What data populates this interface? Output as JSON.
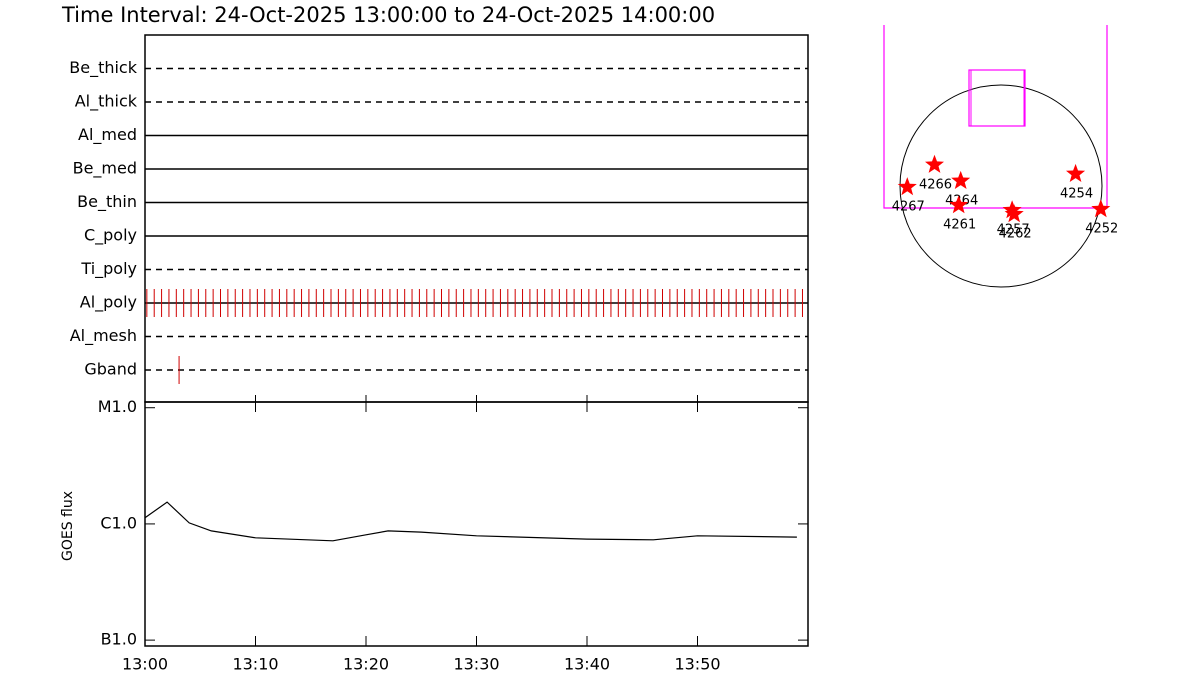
{
  "chart_data": [
    {
      "type": "timeline",
      "title": "Time Interval: 24-Oct-2025 13:00:00 to 24-Oct-2025 14:00:00",
      "xlim": [
        "13:00",
        "14:00"
      ],
      "xticks": [
        "13:00",
        "13:10",
        "13:20",
        "13:30",
        "13:40",
        "13:50"
      ],
      "event_color": "#d00000",
      "rows": [
        {
          "name": "Be_thick",
          "style": "dashed",
          "events": []
        },
        {
          "name": "Al_thick",
          "style": "dashed",
          "events": []
        },
        {
          "name": "Al_med",
          "style": "solid",
          "events": []
        },
        {
          "name": "Be_med",
          "style": "solid",
          "events": []
        },
        {
          "name": "Be_thin",
          "style": "solid",
          "events": []
        },
        {
          "name": "C_poly",
          "style": "solid",
          "events": []
        },
        {
          "name": "Ti_poly",
          "style": "dashed",
          "events": []
        },
        {
          "name": "Al_poly",
          "style": "solid",
          "events": [
            "13:00:10",
            "13:00:50",
            "13:01:30",
            "13:02:10",
            "13:02:50",
            "13:03:30",
            "13:04:10",
            "13:04:50",
            "13:05:30",
            "13:06:10",
            "13:06:50",
            "13:07:30",
            "13:08:10",
            "13:08:50",
            "13:09:30",
            "13:10:10",
            "13:10:50",
            "13:11:30",
            "13:12:10",
            "13:12:50",
            "13:13:30",
            "13:14:10",
            "13:14:50",
            "13:15:30",
            "13:16:10",
            "13:16:50",
            "13:17:30",
            "13:18:10",
            "13:18:50",
            "13:19:30",
            "13:20:10",
            "13:20:50",
            "13:21:30",
            "13:22:10",
            "13:22:50",
            "13:23:30",
            "13:24:10",
            "13:24:50",
            "13:25:30",
            "13:26:10",
            "13:26:50",
            "13:27:30",
            "13:28:10",
            "13:28:50",
            "13:29:30",
            "13:30:10",
            "13:30:50",
            "13:31:30",
            "13:32:10",
            "13:32:50",
            "13:33:30",
            "13:34:10",
            "13:34:50",
            "13:35:30",
            "13:36:10",
            "13:36:50",
            "13:37:30",
            "13:38:10",
            "13:38:50",
            "13:39:30",
            "13:40:10",
            "13:40:50",
            "13:41:30",
            "13:42:10",
            "13:42:50",
            "13:43:30",
            "13:44:10",
            "13:44:50",
            "13:45:30",
            "13:46:10",
            "13:46:50",
            "13:47:30",
            "13:48:10",
            "13:48:50",
            "13:49:30",
            "13:50:10",
            "13:50:50",
            "13:51:30",
            "13:52:10",
            "13:52:50",
            "13:53:30",
            "13:54:10",
            "13:54:50",
            "13:55:30",
            "13:56:10",
            "13:56:50",
            "13:57:30",
            "13:58:10",
            "13:58:50",
            "13:59:30"
          ]
        },
        {
          "name": "Al_mesh",
          "style": "dashed",
          "events": []
        },
        {
          "name": "Gband",
          "style": "dashed",
          "events": [
            "13:03:05"
          ]
        }
      ]
    },
    {
      "type": "line",
      "y_label": "GOES flux",
      "log_scale": true,
      "color": "#000000",
      "x": [
        "13:00",
        "13:02",
        "13:04",
        "13:06",
        "13:10",
        "13:17",
        "13:20",
        "13:22",
        "13:25",
        "13:30",
        "13:40",
        "13:46",
        "13:50",
        "13:59"
      ],
      "values": [
        1.13e-06,
        1.54e-06,
        1.02e-06,
        8.7e-07,
        7.6e-07,
        7.16e-07,
        8.06e-07,
        8.7e-07,
        8.5e-07,
        7.9e-07,
        7.4e-07,
        7.3e-07,
        7.9e-07,
        7.7e-07
      ],
      "xlim": [
        "13:00",
        "14:00"
      ],
      "xticks": [
        "13:00",
        "13:10",
        "13:20",
        "13:30",
        "13:40",
        "13:50"
      ],
      "ylim": [
        8.9e-08,
        1.12e-05
      ],
      "yticks": [
        {
          "value": 1e-07,
          "label": "B1.0"
        },
        {
          "value": 1e-06,
          "label": "C1.0"
        },
        {
          "value": 1e-05,
          "label": "M1.0"
        }
      ]
    },
    {
      "type": "scatter",
      "color": "#ff0000",
      "xlim": [
        -1000,
        1000
      ],
      "ylim": [
        -1000,
        1000
      ],
      "labels": [
        "4266",
        "4264",
        "4267",
        "4261",
        "4257",
        "4262",
        "4254",
        "4252"
      ],
      "x": [
        -627,
        -380,
        -884,
        -399,
        105,
        124,
        703,
        941
      ],
      "values": [
        200,
        48,
        -10,
        -181,
        -228,
        -266,
        114,
        -219
      ]
    }
  ]
}
